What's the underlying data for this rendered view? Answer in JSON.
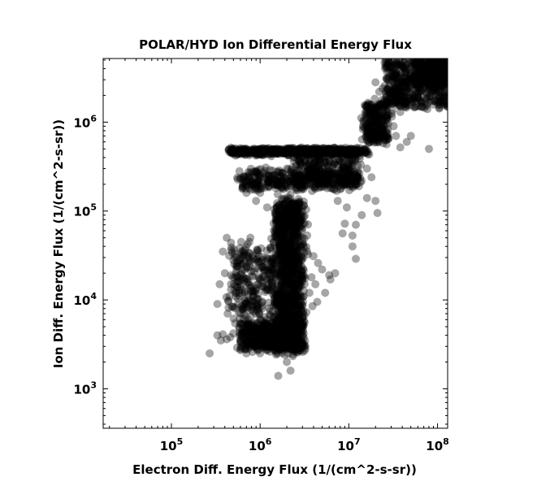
{
  "chart_data": {
    "type": "scatter",
    "title": "POLAR/HYD  Ion Differential Energy Flux",
    "xlabel": "Electron Diff. Energy Flux (1/(cm^2-s-sr))",
    "ylabel": "Ion Diff. Energy Flux (1/(cm^2-s-sr))",
    "xscale": "log",
    "yscale": "log",
    "xlim": [
      17000,
      130000000
    ],
    "ylim": [
      360,
      5200000
    ],
    "x_ticks": [
      {
        "base": "10",
        "exp": "5",
        "value": 100000
      },
      {
        "base": "10",
        "exp": "6",
        "value": 1000000
      },
      {
        "base": "10",
        "exp": "7",
        "value": 10000000
      },
      {
        "base": "10",
        "exp": "8",
        "value": 100000000
      }
    ],
    "y_ticks": [
      {
        "base": "10",
        "exp": "3",
        "value": 1000
      },
      {
        "base": "10",
        "exp": "4",
        "value": 10000
      },
      {
        "base": "10",
        "exp": "5",
        "value": 100000
      },
      {
        "base": "10",
        "exp": "6",
        "value": 1000000
      }
    ],
    "marker_color": "#000000",
    "marker_opacity": 0.35,
    "grid": false,
    "points": [
      [
        270000,
        2500
      ],
      [
        330000,
        4000
      ],
      [
        360000,
        3500
      ],
      [
        380000,
        4100
      ],
      [
        420000,
        3600
      ],
      [
        460000,
        3800
      ],
      [
        500000,
        4200
      ],
      [
        550000,
        2900
      ],
      [
        610000,
        3000
      ],
      [
        700000,
        2500
      ],
      [
        820000,
        2600
      ],
      [
        1600000,
        1400
      ],
      [
        2000000,
        2000
      ],
      [
        2200000,
        1600
      ],
      [
        1900000,
        2400
      ],
      [
        2400000,
        2700
      ],
      [
        2700000,
        3200
      ],
      [
        3000000,
        2600
      ],
      [
        450000,
        11000
      ],
      [
        400000,
        20000
      ],
      [
        380000,
        35000
      ],
      [
        500000,
        28000
      ],
      [
        600000,
        14000
      ],
      [
        700000,
        8000
      ],
      [
        420000,
        50000
      ],
      [
        330000,
        9000
      ],
      [
        470000,
        44000
      ],
      [
        550000,
        24000
      ],
      [
        650000,
        18000
      ],
      [
        900000,
        7000
      ],
      [
        350000,
        15000
      ],
      [
        430000,
        7000
      ],
      [
        520000,
        33000
      ],
      [
        610000,
        45000
      ],
      [
        760000,
        26000
      ],
      [
        1200000,
        36000
      ],
      [
        1300000,
        22000
      ],
      [
        1500000,
        30000
      ],
      [
        4000000,
        31000
      ],
      [
        4500000,
        26000
      ],
      [
        5000000,
        22000
      ],
      [
        3800000,
        18000
      ],
      [
        4200000,
        15000
      ],
      [
        5400000,
        12000
      ],
      [
        6000000,
        19000
      ],
      [
        3600000,
        12000
      ],
      [
        3900000,
        8500
      ],
      [
        4400000,
        9500
      ],
      [
        6200000,
        17000
      ],
      [
        7000000,
        20000
      ],
      [
        11000000,
        40000
      ],
      [
        12000000,
        29000
      ],
      [
        3000000,
        45000
      ],
      [
        8500000,
        56000
      ],
      [
        9000000,
        72000
      ],
      [
        11000000,
        53000
      ],
      [
        12000000,
        70000
      ],
      [
        14000000,
        90000
      ],
      [
        16000000,
        140000
      ],
      [
        18000000,
        240000
      ],
      [
        21000000,
        95000
      ],
      [
        20000000,
        130000
      ],
      [
        7500000,
        130000
      ],
      [
        9500000,
        110000
      ],
      [
        13000000,
        190000
      ],
      [
        16000000,
        300000
      ],
      [
        6000000,
        260000
      ],
      [
        8000000,
        230000
      ],
      [
        6500000,
        180000
      ],
      [
        10000000,
        200000
      ],
      [
        600000,
        230000
      ],
      [
        800000,
        200000
      ],
      [
        1000000,
        160000
      ],
      [
        1200000,
        110000
      ],
      [
        700000,
        160000
      ],
      [
        900000,
        130000
      ],
      [
        1400000,
        250000
      ],
      [
        1700000,
        270000
      ],
      [
        2000000,
        300000
      ],
      [
        2300000,
        310000
      ],
      [
        450000,
        460000
      ],
      [
        600000,
        460000
      ],
      [
        800000,
        465000
      ],
      [
        1000000,
        470000
      ],
      [
        1300000,
        470000
      ],
      [
        1700000,
        480000
      ],
      [
        2200000,
        480000
      ],
      [
        2800000,
        490000
      ],
      [
        3500000,
        490000
      ],
      [
        4500000,
        495000
      ],
      [
        5500000,
        500000
      ],
      [
        7000000,
        500000
      ],
      [
        9000000,
        480000
      ],
      [
        11000000,
        470000
      ],
      [
        13000000,
        470000
      ],
      [
        15000000,
        500000
      ],
      [
        17000000,
        600000
      ],
      [
        18000000,
        800000
      ],
      [
        19000000,
        1000000
      ],
      [
        22000000,
        1100000
      ],
      [
        25000000,
        1300000
      ],
      [
        28000000,
        1200000
      ],
      [
        32000000,
        900000
      ],
      [
        34000000,
        700000
      ],
      [
        38000000,
        520000
      ],
      [
        45000000,
        600000
      ],
      [
        50000000,
        700000
      ],
      [
        26000000,
        1600000
      ],
      [
        30000000,
        1900000
      ],
      [
        34000000,
        2400000
      ],
      [
        40000000,
        2900000
      ],
      [
        48000000,
        3200000
      ],
      [
        55000000,
        2700000
      ],
      [
        60000000,
        2100000
      ],
      [
        70000000,
        3000000
      ],
      [
        80000000,
        3600000
      ],
      [
        90000000,
        4200000
      ],
      [
        100000000,
        4600000
      ],
      [
        110000000,
        3900000
      ],
      [
        120000000,
        3300000
      ],
      [
        80000000,
        500000
      ],
      [
        95000000,
        2600000
      ],
      [
        105000000,
        2900000
      ],
      [
        115000000,
        4800000
      ],
      [
        65000000,
        1500000
      ],
      [
        54000000,
        1700000
      ],
      [
        44000000,
        1500000
      ],
      [
        38000000,
        1300000
      ],
      [
        20000000,
        2800000
      ],
      [
        22000000,
        2200000
      ],
      [
        1700000,
        9000
      ],
      [
        1800000,
        14000
      ],
      [
        2000000,
        18000
      ],
      [
        2100000,
        26000
      ],
      [
        2300000,
        32000
      ],
      [
        2400000,
        45000
      ],
      [
        2500000,
        60000
      ],
      [
        2600000,
        75000
      ],
      [
        2700000,
        90000
      ],
      [
        1600000,
        60000
      ],
      [
        1500000,
        80000
      ],
      [
        1900000,
        120000
      ],
      [
        2200000,
        150000
      ],
      [
        2600000,
        170000
      ],
      [
        3000000,
        200000
      ],
      [
        3500000,
        230000
      ],
      [
        4000000,
        260000
      ],
      [
        5000000,
        300000
      ],
      [
        4300000,
        420000
      ],
      [
        3200000,
        380000
      ],
      [
        1500000,
        5000
      ],
      [
        1700000,
        4000
      ],
      [
        1900000,
        3500
      ],
      [
        2100000,
        3000
      ],
      [
        2300000,
        3800
      ],
      [
        2500000,
        4400
      ],
      [
        2700000,
        5000
      ],
      [
        1300000,
        3200
      ],
      [
        1100000,
        3600
      ],
      [
        900000,
        4200
      ]
    ],
    "clusters": [
      {
        "x": [
          1500000,
          3000000
        ],
        "y": [
          2600,
          130000
        ],
        "n": 1100,
        "spread": 0.1
      },
      {
        "x": [
          600000,
          3000000
        ],
        "y": [
          2800,
          5500
        ],
        "n": 500,
        "spread": 0.1
      },
      {
        "x": [
          500000,
          1400000
        ],
        "y": [
          6000,
          40000
        ],
        "n": 260,
        "spread": 0.16
      },
      {
        "x": [
          450000,
          16000000
        ],
        "y": [
          440000,
          500000
        ],
        "n": 650,
        "spread": 0.04
      },
      {
        "x": [
          600000,
          12000000
        ],
        "y": [
          180000,
          280000
        ],
        "n": 350,
        "spread": 0.1
      },
      {
        "x": [
          2500000,
          13000000
        ],
        "y": [
          200000,
          420000
        ],
        "n": 250,
        "spread": 0.12
      },
      {
        "x": [
          15000000,
          28000000
        ],
        "y": [
          600000,
          1700000
        ],
        "n": 240,
        "spread": 0.08
      },
      {
        "x": [
          26000000,
          130000000
        ],
        "y": [
          1500000,
          5000000
        ],
        "n": 500,
        "spread": 0.1
      },
      {
        "x": [
          60000000,
          130000000
        ],
        "y": [
          2500000,
          5200000
        ],
        "n": 280,
        "spread": 0.06
      }
    ]
  }
}
